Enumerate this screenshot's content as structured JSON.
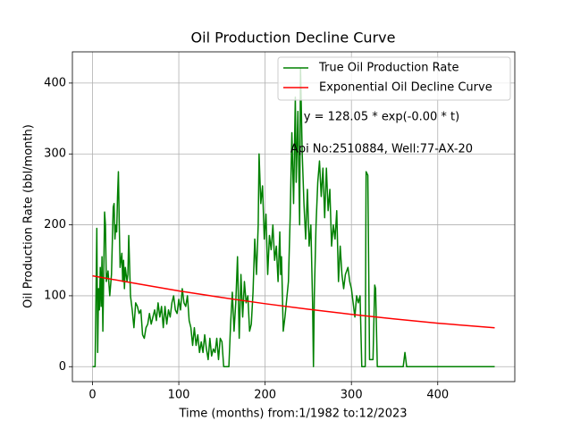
{
  "chart_data": {
    "type": "line",
    "title": "Oil Production Decline Curve",
    "x_label": "Time (months) from:1/1982 to:12/2023",
    "y_label": "Oil Production Rate (bbl/month)",
    "annotations": [
      "y = 128.05 * exp(-0.00 * t)",
      "Api No:2510884, Well:77-AX-20"
    ],
    "xlim": [
      -23.3,
      489.3
    ],
    "ylim": [
      -21.1,
      444
    ],
    "xticks": [
      0,
      100,
      200,
      300,
      400
    ],
    "yticks": [
      0,
      100,
      200,
      300,
      400
    ],
    "grid": true,
    "legend": "upper right",
    "series": [
      {
        "name": "True Oil Production Rate",
        "color": "#008000",
        "x": [
          0,
          3,
          5,
          6,
          7,
          8,
          9,
          10,
          11,
          12,
          13,
          14,
          15,
          16,
          18,
          20,
          22,
          24,
          25,
          26,
          27,
          28,
          29,
          30,
          31,
          32,
          34,
          35,
          36,
          37,
          38,
          40,
          41,
          42,
          44,
          46,
          48,
          50,
          52,
          54,
          56,
          58,
          60,
          62,
          64,
          66,
          68,
          70,
          72,
          74,
          76,
          78,
          80,
          82,
          84,
          86,
          88,
          90,
          92,
          94,
          96,
          98,
          100,
          102,
          104,
          106,
          108,
          110,
          112,
          114,
          116,
          118,
          120,
          122,
          124,
          126,
          128,
          130,
          132,
          134,
          136,
          138,
          140,
          142,
          144,
          146,
          148,
          150,
          152,
          156,
          158,
          160,
          162,
          164,
          166,
          168,
          170,
          172,
          174,
          176,
          178,
          180,
          182,
          184,
          186,
          188,
          190,
          192,
          193,
          195,
          197,
          199,
          201,
          203,
          205,
          207,
          209,
          211,
          213,
          215,
          217,
          218,
          219,
          221,
          223,
          225,
          227,
          229,
          231,
          233,
          235,
          236,
          238,
          240,
          241,
          243,
          245,
          247,
          249,
          251,
          253,
          255,
          256,
          257,
          259,
          261,
          263,
          265,
          267,
          269,
          271,
          273,
          275,
          277,
          279,
          281,
          283,
          285,
          287,
          289,
          291,
          293,
          296,
          298,
          300,
          302,
          304,
          306,
          308,
          310,
          312,
          314,
          316,
          317,
          319,
          321,
          323,
          325,
          327,
          328,
          330,
          340,
          360,
          362,
          364,
          380,
          466
        ],
        "values": [
          0,
          0,
          195,
          20,
          110,
          80,
          140,
          85,
          155,
          50,
          130,
          218,
          200,
          120,
          135,
          100,
          130,
          225,
          230,
          180,
          200,
          190,
          240,
          275,
          200,
          140,
          160,
          120,
          150,
          110,
          140,
          120,
          130,
          185,
          100,
          80,
          55,
          90,
          85,
          75,
          80,
          45,
          40,
          55,
          60,
          75,
          60,
          70,
          80,
          65,
          90,
          70,
          85,
          55,
          85,
          60,
          80,
          70,
          90,
          100,
          80,
          75,
          95,
          80,
          110,
          90,
          85,
          100,
          65,
          55,
          30,
          55,
          30,
          45,
          20,
          35,
          20,
          45,
          25,
          10,
          40,
          15,
          25,
          20,
          40,
          10,
          40,
          35,
          0,
          0,
          0,
          60,
          105,
          50,
          90,
          155,
          40,
          130,
          70,
          120,
          90,
          100,
          50,
          60,
          105,
          180,
          130,
          200,
          300,
          230,
          255,
          180,
          215,
          130,
          185,
          165,
          200,
          150,
          170,
          120,
          190,
          130,
          155,
          50,
          70,
          95,
          120,
          210,
          330,
          230,
          380,
          260,
          360,
          200,
          420,
          300,
          230,
          180,
          250,
          170,
          200,
          90,
          0,
          100,
          200,
          260,
          290,
          240,
          280,
          210,
          280,
          220,
          250,
          170,
          200,
          180,
          220,
          120,
          170,
          130,
          110,
          130,
          140,
          120,
          110,
          90,
          70,
          100,
          90,
          100,
          0,
          0,
          0,
          275,
          270,
          10,
          10,
          10,
          115,
          110,
          0,
          0,
          0,
          20,
          0,
          0,
          0
        ]
      },
      {
        "name": "Exponential Oil Decline Curve",
        "color": "#ff0000",
        "x": [
          0,
          50,
          100,
          150,
          200,
          250,
          300,
          350,
          400,
          466
        ],
        "values": [
          128.05,
          117.4,
          106.9,
          97.5,
          88.8,
          81.0,
          73.8,
          67.3,
          61.3,
          54.8
        ]
      }
    ]
  }
}
